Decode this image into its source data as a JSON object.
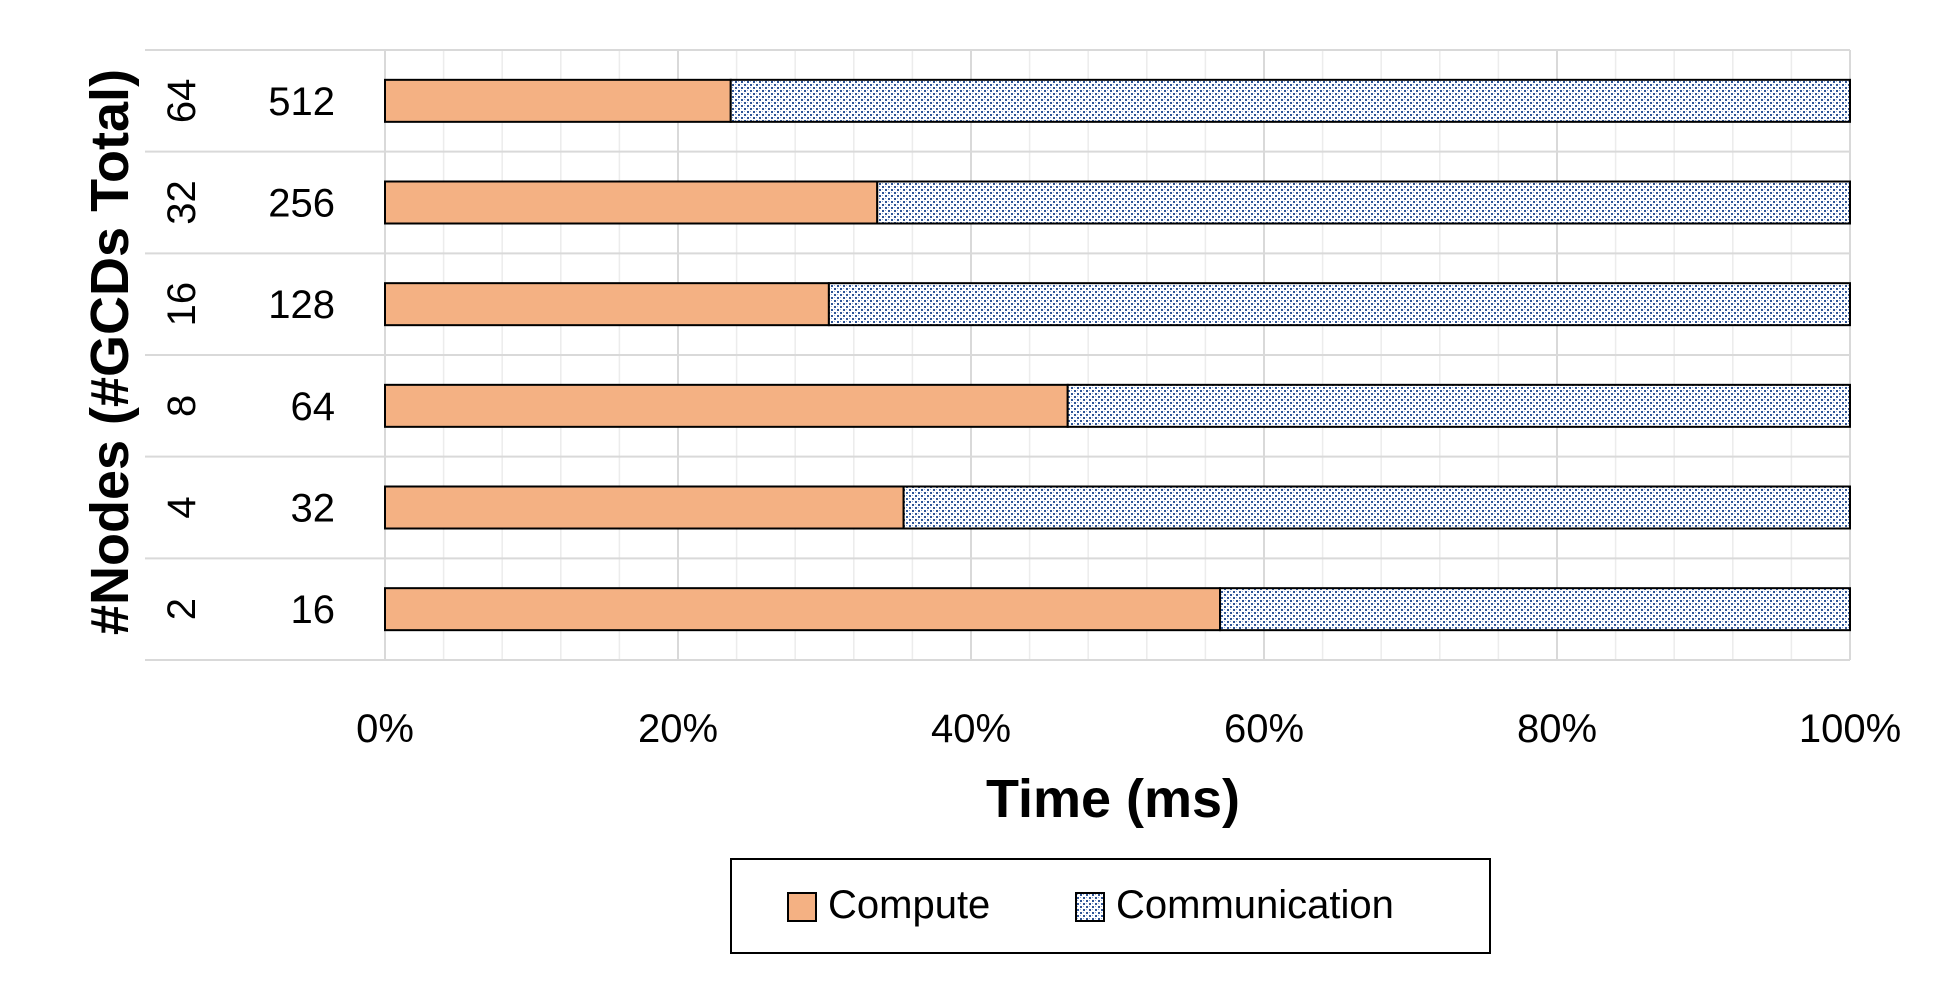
{
  "chart_data": {
    "type": "bar",
    "orientation": "horizontal",
    "stacked": "percent",
    "xlabel": "Time (ms)",
    "ylabel": "#Nodes (#GCDs Total)",
    "xlim": [
      0,
      100
    ],
    "x_ticks": [
      "0%",
      "20%",
      "40%",
      "60%",
      "80%",
      "100%"
    ],
    "grid": "vertical",
    "categories": [
      {
        "nodes": "2",
        "gcds": "16"
      },
      {
        "nodes": "4",
        "gcds": "32"
      },
      {
        "nodes": "8",
        "gcds": "64"
      },
      {
        "nodes": "16",
        "gcds": "128"
      },
      {
        "nodes": "32",
        "gcds": "256"
      },
      {
        "nodes": "64",
        "gcds": "512"
      }
    ],
    "series": [
      {
        "name": "Compute",
        "color": "#f4b183",
        "pattern": "solid",
        "values": [
          57,
          35.4,
          46.6,
          30.3,
          33.6,
          23.6
        ]
      },
      {
        "name": "Communication",
        "color": "#2f5597",
        "pattern": "checkered",
        "values": [
          43,
          64.6,
          53.4,
          69.7,
          66.4,
          76.4
        ]
      }
    ],
    "legend": {
      "position": "bottom"
    }
  }
}
